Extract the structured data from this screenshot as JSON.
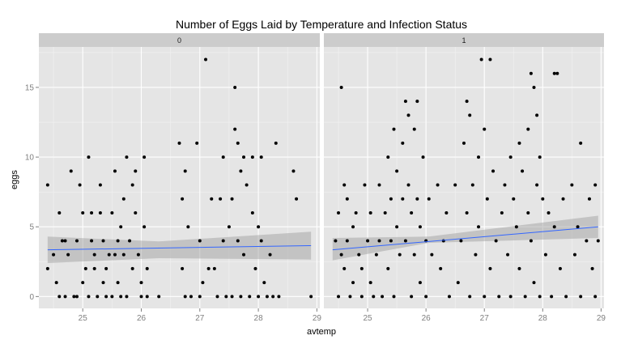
{
  "chart_data": {
    "type": "scatter",
    "title": "Number of Eggs Laid by Temperature and Infection Status",
    "xlabel": "avtemp",
    "ylabel": "eggs",
    "xlim": [
      24.25,
      29.05
    ],
    "ylim": [
      -0.85,
      17.9
    ],
    "xticks": [
      "25",
      "26",
      "27",
      "28",
      "29"
    ],
    "yticks": [
      "0",
      "5",
      "10",
      "15"
    ],
    "grid": true,
    "colors": {
      "panel_bg": "#e5e5e5",
      "grid_major": "#ffffff",
      "grid_minor": "#f2f2f2",
      "strip_bg": "#cccccc",
      "point": "#000000",
      "ribbon": "#999999",
      "fit_line": "#3366ff"
    },
    "facets": [
      {
        "label": "0",
        "fit": {
          "x_start": 24.4,
          "x_end": 28.9,
          "y_start": 3.35,
          "y_end": 3.65
        },
        "ribbon": {
          "upper": [
            [
              24.4,
              4.3
            ],
            [
              26.3,
              3.95
            ],
            [
              28.9,
              4.65
            ]
          ],
          "lower": [
            [
              24.4,
              2.4
            ],
            [
              26.3,
              2.75
            ],
            [
              28.9,
              2.65
            ]
          ]
        },
        "points": [
          [
            24.4,
            8
          ],
          [
            24.4,
            2
          ],
          [
            24.5,
            3
          ],
          [
            24.55,
            1
          ],
          [
            24.6,
            0
          ],
          [
            24.6,
            6
          ],
          [
            24.65,
            4
          ],
          [
            24.7,
            4
          ],
          [
            24.7,
            0
          ],
          [
            24.75,
            3
          ],
          [
            24.8,
            9
          ],
          [
            24.85,
            0
          ],
          [
            24.9,
            0
          ],
          [
            24.9,
            4
          ],
          [
            24.95,
            8
          ],
          [
            25.0,
            6
          ],
          [
            25.0,
            1
          ],
          [
            25.05,
            2
          ],
          [
            25.1,
            10
          ],
          [
            25.1,
            0
          ],
          [
            25.15,
            6
          ],
          [
            25.15,
            4
          ],
          [
            25.2,
            2
          ],
          [
            25.2,
            3
          ],
          [
            25.25,
            0
          ],
          [
            25.3,
            6
          ],
          [
            25.3,
            8
          ],
          [
            25.35,
            1
          ],
          [
            25.35,
            4
          ],
          [
            25.4,
            2
          ],
          [
            25.4,
            0
          ],
          [
            25.45,
            3
          ],
          [
            25.5,
            6
          ],
          [
            25.5,
            0
          ],
          [
            25.55,
            9
          ],
          [
            25.55,
            3
          ],
          [
            25.6,
            4
          ],
          [
            25.6,
            1
          ],
          [
            25.65,
            5
          ],
          [
            25.65,
            0
          ],
          [
            25.7,
            7
          ],
          [
            25.7,
            3
          ],
          [
            25.75,
            10
          ],
          [
            25.75,
            0
          ],
          [
            25.8,
            4
          ],
          [
            25.85,
            8
          ],
          [
            25.85,
            2
          ],
          [
            25.9,
            9
          ],
          [
            25.9,
            6
          ],
          [
            25.95,
            3
          ],
          [
            26.0,
            1
          ],
          [
            26.0,
            0
          ],
          [
            26.05,
            10
          ],
          [
            26.05,
            5
          ],
          [
            26.1,
            2
          ],
          [
            26.1,
            0
          ],
          [
            26.3,
            0
          ],
          [
            26.65,
            11
          ],
          [
            26.7,
            7
          ],
          [
            26.7,
            2
          ],
          [
            26.75,
            9
          ],
          [
            26.75,
            0
          ],
          [
            26.8,
            5
          ],
          [
            26.85,
            0
          ],
          [
            26.95,
            11
          ],
          [
            27.0,
            4
          ],
          [
            27.0,
            0
          ],
          [
            27.05,
            1
          ],
          [
            27.1,
            17
          ],
          [
            27.15,
            2
          ],
          [
            27.2,
            7
          ],
          [
            27.25,
            2
          ],
          [
            27.3,
            0
          ],
          [
            27.35,
            7
          ],
          [
            27.4,
            10
          ],
          [
            27.4,
            4
          ],
          [
            27.45,
            0
          ],
          [
            27.5,
            5
          ],
          [
            27.55,
            7
          ],
          [
            27.55,
            0
          ],
          [
            27.6,
            15
          ],
          [
            27.6,
            12
          ],
          [
            27.65,
            11
          ],
          [
            27.65,
            4
          ],
          [
            27.7,
            9
          ],
          [
            27.7,
            0
          ],
          [
            27.75,
            10
          ],
          [
            27.75,
            3
          ],
          [
            27.8,
            8
          ],
          [
            27.85,
            0
          ],
          [
            27.9,
            10
          ],
          [
            27.9,
            6
          ],
          [
            27.95,
            2
          ],
          [
            28.0,
            5
          ],
          [
            28.0,
            0
          ],
          [
            28.05,
            10
          ],
          [
            28.05,
            4
          ],
          [
            28.1,
            1
          ],
          [
            28.15,
            0
          ],
          [
            28.2,
            3
          ],
          [
            28.25,
            0
          ],
          [
            28.3,
            11
          ],
          [
            28.35,
            0
          ],
          [
            28.6,
            9
          ],
          [
            28.65,
            7
          ],
          [
            28.9,
            0
          ]
        ]
      },
      {
        "label": "1",
        "fit": {
          "x_start": 24.4,
          "x_end": 28.95,
          "y_start": 3.35,
          "y_end": 5.0
        },
        "ribbon": {
          "upper": [
            [
              24.4,
              4.2
            ],
            [
              26.05,
              4.3
            ],
            [
              28.95,
              5.8
            ]
          ],
          "lower": [
            [
              24.4,
              2.6
            ],
            [
              26.05,
              3.85
            ],
            [
              28.95,
              4.2
            ]
          ]
        },
        "points": [
          [
            24.45,
            4
          ],
          [
            24.5,
            0
          ],
          [
            24.5,
            6
          ],
          [
            24.55,
            3
          ],
          [
            24.55,
            15
          ],
          [
            24.6,
            8
          ],
          [
            24.6,
            2
          ],
          [
            24.65,
            7
          ],
          [
            24.65,
            4
          ],
          [
            24.7,
            0
          ],
          [
            24.75,
            5
          ],
          [
            24.75,
            1
          ],
          [
            24.8,
            6
          ],
          [
            24.85,
            3
          ],
          [
            24.9,
            2
          ],
          [
            24.9,
            0
          ],
          [
            24.95,
            8
          ],
          [
            25.0,
            4
          ],
          [
            25.05,
            6
          ],
          [
            25.05,
            1
          ],
          [
            25.1,
            0
          ],
          [
            25.15,
            3
          ],
          [
            25.2,
            8
          ],
          [
            25.2,
            4
          ],
          [
            25.25,
            0
          ],
          [
            25.3,
            6
          ],
          [
            25.35,
            10
          ],
          [
            25.35,
            2
          ],
          [
            25.4,
            7
          ],
          [
            25.4,
            4
          ],
          [
            25.45,
            12
          ],
          [
            25.45,
            0
          ],
          [
            25.5,
            9
          ],
          [
            25.5,
            5
          ],
          [
            25.55,
            3
          ],
          [
            25.6,
            11
          ],
          [
            25.6,
            7
          ],
          [
            25.65,
            14
          ],
          [
            25.65,
            4
          ],
          [
            25.7,
            13
          ],
          [
            25.7,
            8
          ],
          [
            25.75,
            6
          ],
          [
            25.75,
            0
          ],
          [
            25.8,
            12
          ],
          [
            25.8,
            3
          ],
          [
            25.85,
            14
          ],
          [
            25.85,
            7
          ],
          [
            25.9,
            5
          ],
          [
            25.9,
            1
          ],
          [
            25.95,
            10
          ],
          [
            26.0,
            4
          ],
          [
            26.0,
            0
          ],
          [
            26.05,
            7
          ],
          [
            26.1,
            3
          ],
          [
            26.2,
            8
          ],
          [
            26.25,
            2
          ],
          [
            26.3,
            4
          ],
          [
            26.35,
            6
          ],
          [
            26.4,
            0
          ],
          [
            26.5,
            8
          ],
          [
            26.55,
            1
          ],
          [
            26.6,
            4
          ],
          [
            26.65,
            11
          ],
          [
            26.7,
            14
          ],
          [
            26.7,
            6
          ],
          [
            26.75,
            13
          ],
          [
            26.75,
            0
          ],
          [
            26.8,
            8
          ],
          [
            26.85,
            3
          ],
          [
            26.9,
            10
          ],
          [
            26.9,
            5
          ],
          [
            26.95,
            17
          ],
          [
            27.0,
            12
          ],
          [
            27.0,
            0
          ],
          [
            27.05,
            7
          ],
          [
            27.1,
            17
          ],
          [
            27.1,
            2
          ],
          [
            27.15,
            9
          ],
          [
            27.2,
            4
          ],
          [
            27.25,
            0
          ],
          [
            27.3,
            6
          ],
          [
            27.35,
            8
          ],
          [
            27.4,
            3
          ],
          [
            27.45,
            10
          ],
          [
            27.45,
            0
          ],
          [
            27.5,
            7
          ],
          [
            27.55,
            5
          ],
          [
            27.6,
            11
          ],
          [
            27.6,
            2
          ],
          [
            27.65,
            9
          ],
          [
            27.7,
            0
          ],
          [
            27.75,
            12
          ],
          [
            27.75,
            6
          ],
          [
            27.8,
            16
          ],
          [
            27.8,
            4
          ],
          [
            27.85,
            15
          ],
          [
            27.85,
            1
          ],
          [
            27.9,
            13
          ],
          [
            27.9,
            8
          ],
          [
            27.95,
            10
          ],
          [
            27.95,
            0
          ],
          [
            28.0,
            7
          ],
          [
            28.05,
            3
          ],
          [
            28.1,
            6
          ],
          [
            28.15,
            0
          ],
          [
            28.2,
            16
          ],
          [
            28.2,
            5
          ],
          [
            28.25,
            16
          ],
          [
            28.3,
            2
          ],
          [
            28.35,
            7
          ],
          [
            28.4,
            0
          ],
          [
            28.5,
            8
          ],
          [
            28.55,
            3
          ],
          [
            28.6,
            5
          ],
          [
            28.65,
            11
          ],
          [
            28.65,
            0
          ],
          [
            28.75,
            4
          ],
          [
            28.8,
            7
          ],
          [
            28.85,
            2
          ],
          [
            28.9,
            8
          ],
          [
            28.9,
            0
          ],
          [
            28.95,
            4
          ]
        ]
      }
    ]
  }
}
